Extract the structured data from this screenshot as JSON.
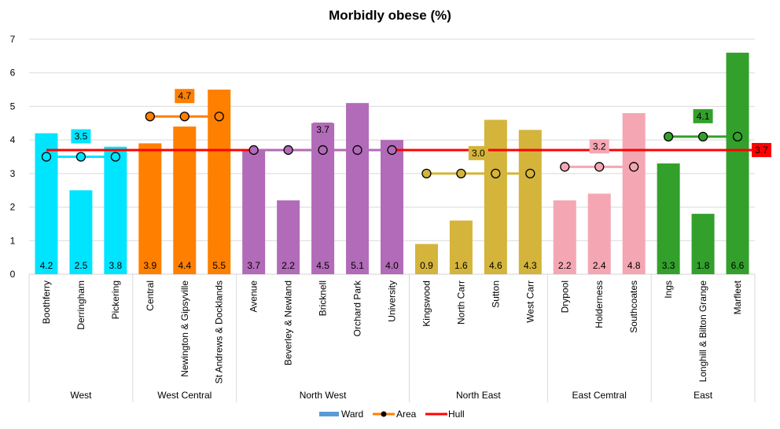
{
  "chart_data": {
    "type": "bar",
    "title": "Morbidly obese (%)",
    "xlabel": "",
    "ylabel": "",
    "ylim": [
      0,
      7
    ],
    "yticks": [
      "0",
      "1",
      "2",
      "3",
      "4",
      "5",
      "6",
      "7"
    ],
    "grid": true,
    "legend_position": "bottom",
    "legend": [
      {
        "name": "Ward",
        "color": "#5B9BD5",
        "kind": "bar"
      },
      {
        "name": "Area",
        "color": "#FF7F00",
        "kind": "line-marker"
      },
      {
        "name": "Hull",
        "color": "#FF0000",
        "kind": "line"
      }
    ],
    "groups": [
      {
        "name": "West",
        "color": "#00E5FF",
        "area": 3.5,
        "area_label": "3.5",
        "wards": [
          {
            "name": "Boothferry",
            "value": 4.2,
            "label": "4.2"
          },
          {
            "name": "Derringham",
            "value": 2.5,
            "label": "2.5"
          },
          {
            "name": "Pickering",
            "value": 3.8,
            "label": "3.8"
          }
        ]
      },
      {
        "name": "West Central",
        "color": "#FF7F00",
        "area": 4.7,
        "area_label": "4.7",
        "wards": [
          {
            "name": "Central",
            "value": 3.9,
            "label": "3.9"
          },
          {
            "name": "Newington & Gipsyville",
            "value": 4.4,
            "label": "4.4"
          },
          {
            "name": "St Andrews & Docklands",
            "value": 5.5,
            "label": "5.5"
          }
        ]
      },
      {
        "name": "North West",
        "color": "#B26BB8",
        "area": 3.7,
        "area_label": "3.7",
        "wards": [
          {
            "name": "Avenue",
            "value": 3.7,
            "label": "3.7"
          },
          {
            "name": "Beverley & Newland",
            "value": 2.2,
            "label": "2.2"
          },
          {
            "name": "Bricknell",
            "value": 4.5,
            "label": "4.5"
          },
          {
            "name": "Orchard Park",
            "value": 5.1,
            "label": "5.1"
          },
          {
            "name": "University",
            "value": 4.0,
            "label": "4.0"
          }
        ]
      },
      {
        "name": "North East",
        "color": "#D4B43A",
        "area": 3.0,
        "area_label": "3.0",
        "wards": [
          {
            "name": "Kingswood",
            "value": 0.9,
            "label": "0.9"
          },
          {
            "name": "North Carr",
            "value": 1.6,
            "label": "1.6"
          },
          {
            "name": "Sutton",
            "value": 4.6,
            "label": "4.6"
          },
          {
            "name": "West Carr",
            "value": 4.3,
            "label": "4.3"
          }
        ]
      },
      {
        "name": "East Cemtral",
        "color": "#F4A7B3",
        "area": 3.2,
        "area_label": "3.2",
        "wards": [
          {
            "name": "Drypool",
            "value": 2.2,
            "label": "2.2"
          },
          {
            "name": "Holderness",
            "value": 2.4,
            "label": "2.4"
          },
          {
            "name": "Southcoates",
            "value": 4.8,
            "label": "4.8"
          }
        ]
      },
      {
        "name": "East",
        "color": "#33A02C",
        "area": 4.1,
        "area_label": "4.1",
        "wards": [
          {
            "name": "Ings",
            "value": 3.3,
            "label": "3.3"
          },
          {
            "name": "Longhill & Bilton Grange",
            "value": 1.8,
            "label": "1.8"
          },
          {
            "name": "Marfleet",
            "value": 6.6,
            "label": "6.6"
          }
        ]
      }
    ],
    "hull": {
      "value": 3.7,
      "label": "3.7",
      "color": "#FF0000"
    }
  }
}
